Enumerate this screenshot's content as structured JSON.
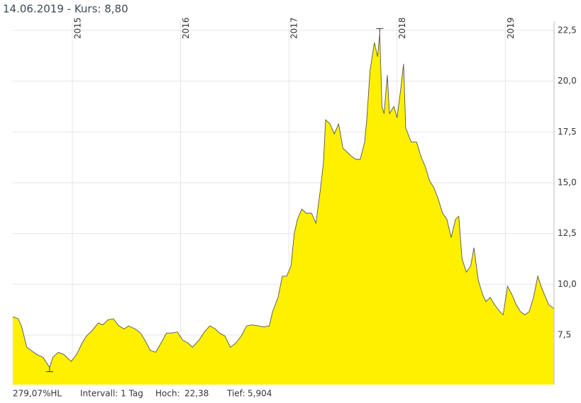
{
  "chart_data": {
    "type": "area",
    "title": "14.06.2019  - Kurs: 8,80",
    "x": [
      2014.45,
      2014.5,
      2014.53,
      2014.58,
      2014.63,
      2014.67,
      2014.73,
      2014.79,
      2014.82,
      2014.87,
      2014.92,
      2014.99,
      2015.04,
      2015.09,
      2015.13,
      2015.18,
      2015.24,
      2015.28,
      2015.33,
      2015.38,
      2015.43,
      2015.48,
      2015.52,
      2015.58,
      2015.63,
      2015.67,
      2015.72,
      2015.77,
      2015.83,
      2015.87,
      2015.92,
      2015.97,
      2016.02,
      2016.07,
      2016.11,
      2016.17,
      2016.22,
      2016.27,
      2016.32,
      2016.36,
      2016.41,
      2016.46,
      2016.51,
      2016.56,
      2016.61,
      2016.66,
      2016.72,
      2016.77,
      2016.82,
      2016.85,
      2016.9,
      2016.94,
      2016.98,
      2017.02,
      2017.05,
      2017.08,
      2017.12,
      2017.16,
      2017.21,
      2017.25,
      2017.29,
      2017.32,
      2017.34,
      2017.38,
      2017.42,
      2017.46,
      2017.5,
      2017.54,
      2017.58,
      2017.62,
      2017.66,
      2017.7,
      2017.72,
      2017.75,
      2017.79,
      2017.82,
      2017.84,
      2017.86,
      2017.88,
      2017.91,
      2017.93,
      2017.97,
      2018.0,
      2018.03,
      2018.06,
      2018.08,
      2018.13,
      2018.18,
      2018.22,
      2018.26,
      2018.3,
      2018.34,
      2018.38,
      2018.42,
      2018.46,
      2018.5,
      2018.54,
      2018.57,
      2018.6,
      2018.64,
      2018.68,
      2018.71,
      2018.75,
      2018.79,
      2018.82,
      2018.86,
      2018.9,
      2018.95,
      2018.98,
      2019.02,
      2019.06,
      2019.1,
      2019.14,
      2019.18,
      2019.22,
      2019.26,
      2019.3,
      2019.33,
      2019.36,
      2019.4,
      2019.45
    ],
    "series": [
      {
        "color": "#fff000",
        "line_color": "#555555",
        "values": [
          8.4,
          8.3,
          7.95,
          6.9,
          6.7,
          6.55,
          6.4,
          5.904,
          6.4,
          6.65,
          6.55,
          6.2,
          6.55,
          7.1,
          7.45,
          7.7,
          8.1,
          8.0,
          8.25,
          8.3,
          7.95,
          7.8,
          7.95,
          7.8,
          7.6,
          7.25,
          6.75,
          6.65,
          7.2,
          7.6,
          7.6,
          7.65,
          7.25,
          7.1,
          6.9,
          7.25,
          7.65,
          7.95,
          7.8,
          7.6,
          7.45,
          6.9,
          7.1,
          7.45,
          7.95,
          8.0,
          7.95,
          7.9,
          7.95,
          8.65,
          9.35,
          10.4,
          10.4,
          10.9,
          12.5,
          13.2,
          13.7,
          13.5,
          13.5,
          13.0,
          14.6,
          16.0,
          18.1,
          17.9,
          17.4,
          17.9,
          16.7,
          16.5,
          16.3,
          16.15,
          16.15,
          17.0,
          18.1,
          20.5,
          21.9,
          21.2,
          22.38,
          18.75,
          18.4,
          20.3,
          18.4,
          18.75,
          18.2,
          19.45,
          20.85,
          17.7,
          17.0,
          17.0,
          16.3,
          15.8,
          15.1,
          14.75,
          14.2,
          13.5,
          13.2,
          12.3,
          13.2,
          13.35,
          11.25,
          10.6,
          10.9,
          11.8,
          10.2,
          9.5,
          9.15,
          9.35,
          9.0,
          8.65,
          8.5,
          9.9,
          9.5,
          9.0,
          8.65,
          8.5,
          8.65,
          9.35,
          10.4,
          9.9,
          9.5,
          9.0,
          8.8
        ]
      }
    ],
    "xlim": [
      2014.45,
      2019.45
    ],
    "xticks": [
      2015,
      2016,
      2017,
      2018,
      2019
    ],
    "ylim": [
      5.06,
      22.95
    ],
    "yticks": [
      {
        "value": 7.5,
        "label": "7,5"
      },
      {
        "value": 10,
        "label": "10,0"
      },
      {
        "value": 12.5,
        "label": "12,5"
      },
      {
        "value": 15,
        "label": "15,0"
      },
      {
        "value": 17.5,
        "label": "17,5"
      },
      {
        "value": 20,
        "label": "20,0"
      },
      {
        "value": 22.5,
        "label": "22,5"
      }
    ],
    "grid": true,
    "footer": {
      "performance": "279,07%HL",
      "interval": "Intervall: 1 Tag",
      "high_label": "Hoch:",
      "high_value": "22,38",
      "low_label": "Tief:",
      "low_value": "5,904"
    }
  }
}
